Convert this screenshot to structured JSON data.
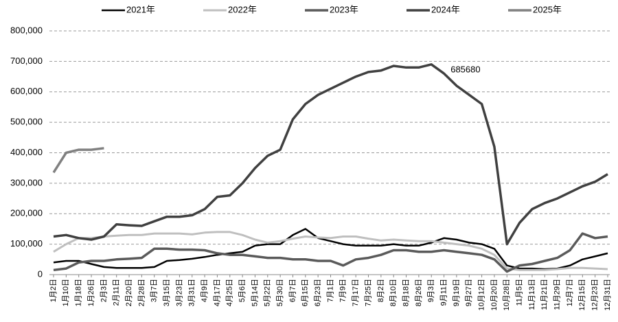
{
  "chart_data": {
    "type": "line",
    "categories": [
      "1月2日",
      "1月10日",
      "1月18日",
      "1月26日",
      "2月3日",
      "2月11日",
      "2月20日",
      "2月28日",
      "3月7日",
      "3月15日",
      "3月23日",
      "3月31日",
      "4月9日",
      "4月17日",
      "4月25日",
      "5月6日",
      "5月14日",
      "5月22日",
      "5月30日",
      "6月7日",
      "6月15日",
      "6月23日",
      "7月1日",
      "7月9日",
      "7月17日",
      "7月25日",
      "8月2日",
      "8月10日",
      "8月18日",
      "8月26日",
      "9月3日",
      "9月11日",
      "9月19日",
      "9月27日",
      "10月12日",
      "10月20日",
      "10月28日",
      "11月5日",
      "11月13日",
      "11月21日",
      "11月29日",
      "12月7日",
      "12月15日",
      "12月23日",
      "12月31日"
    ],
    "series": [
      {
        "name": "2021年",
        "color": "#000000",
        "width": 2.5,
        "values": [
          40000,
          45000,
          45000,
          35000,
          25000,
          22000,
          22000,
          22000,
          25000,
          45000,
          48000,
          52000,
          58000,
          65000,
          70000,
          75000,
          95000,
          100000,
          100000,
          130000,
          150000,
          120000,
          110000,
          100000,
          95000,
          95000,
          95000,
          100000,
          95000,
          95000,
          105000,
          120000,
          115000,
          105000,
          100000,
          85000,
          30000,
          20000,
          20000,
          18000,
          20000,
          30000,
          50000,
          60000,
          70000
        ]
      },
      {
        "name": "2022年",
        "color": "#bfbfbf",
        "width": 3,
        "values": [
          75000,
          100000,
          120000,
          120000,
          125000,
          128000,
          130000,
          130000,
          135000,
          135000,
          135000,
          132000,
          138000,
          140000,
          140000,
          130000,
          115000,
          105000,
          110000,
          118000,
          125000,
          122000,
          120000,
          125000,
          125000,
          118000,
          112000,
          115000,
          112000,
          110000,
          110000,
          105000,
          100000,
          95000,
          85000,
          65000,
          20000,
          15000,
          15000,
          15000,
          18000,
          22000,
          22000,
          20000,
          18000
        ]
      },
      {
        "name": "2023年",
        "color": "#5a5a5a",
        "width": 3.5,
        "values": [
          15000,
          20000,
          40000,
          45000,
          45000,
          50000,
          52000,
          55000,
          85000,
          85000,
          82000,
          82000,
          80000,
          70000,
          65000,
          65000,
          60000,
          55000,
          55000,
          50000,
          50000,
          45000,
          45000,
          30000,
          50000,
          55000,
          65000,
          80000,
          80000,
          75000,
          75000,
          80000,
          75000,
          70000,
          65000,
          50000,
          10000,
          30000,
          35000,
          45000,
          55000,
          80000,
          135000,
          120000,
          125000
        ]
      },
      {
        "name": "2024年",
        "color": "#404040",
        "width": 3.5,
        "values": [
          125000,
          130000,
          120000,
          115000,
          125000,
          165000,
          162000,
          160000,
          175000,
          190000,
          190000,
          195000,
          215000,
          255000,
          260000,
          300000,
          350000,
          390000,
          410000,
          510000,
          560000,
          590000,
          610000,
          630000,
          650000,
          665000,
          670000,
          685000,
          680000,
          680000,
          690000,
          660000,
          620000,
          590000,
          560000,
          420000,
          100000,
          170000,
          215000,
          235000,
          250000,
          270000,
          290000,
          305000,
          330000
        ]
      },
      {
        "name": "2025年",
        "color": "#808080",
        "width": 3.5,
        "values": [
          335000,
          400000,
          410000,
          410000,
          415000,
          null,
          null,
          null,
          null,
          null,
          null,
          null,
          null,
          null,
          null,
          null,
          null,
          null,
          null,
          null,
          null,
          null,
          null,
          null,
          null,
          null,
          null,
          null,
          null,
          null,
          null,
          null,
          null,
          null,
          null,
          null,
          null,
          null,
          null,
          null,
          null,
          null,
          null,
          null,
          null
        ]
      }
    ],
    "annotation": "685680",
    "ylim": [
      0,
      800000
    ],
    "yticks": [
      {
        "value": 0,
        "label": "0"
      },
      {
        "value": 100000,
        "label": "100,000"
      },
      {
        "value": 200000,
        "label": "200,000"
      },
      {
        "value": 300000,
        "label": "300,000"
      },
      {
        "value": 400000,
        "label": "400,000"
      },
      {
        "value": 500000,
        "label": "500,000"
      },
      {
        "value": 600000,
        "label": "600,000"
      },
      {
        "value": 700000,
        "label": "700,000"
      },
      {
        "value": 800000,
        "label": "800,000"
      }
    ],
    "grid": true
  }
}
